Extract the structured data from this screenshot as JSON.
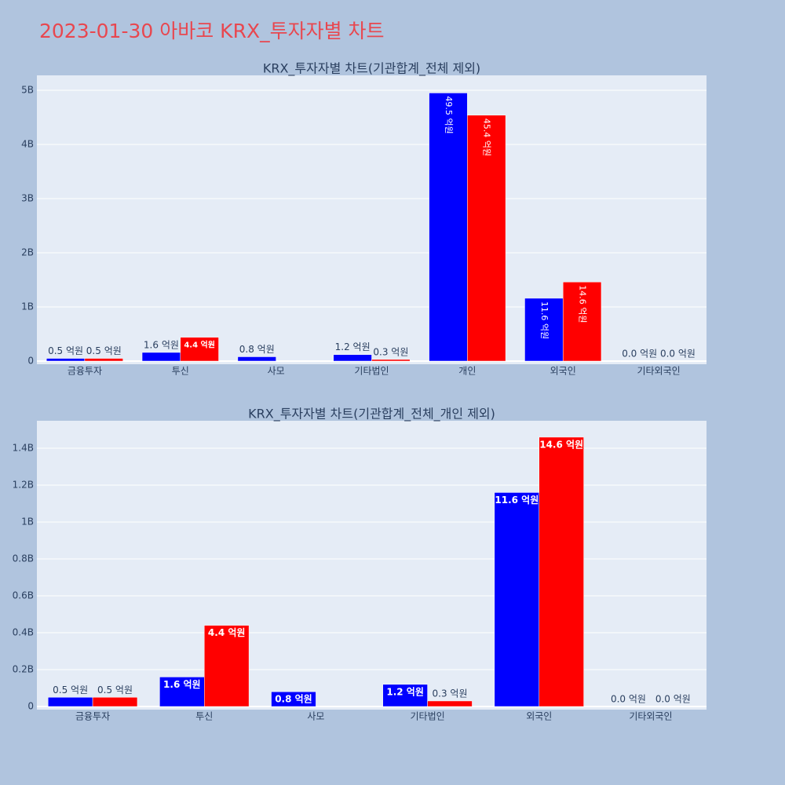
{
  "title": "2023-01-30 아바코 KRX_투자자별 차트",
  "chart_data": [
    {
      "type": "bar",
      "title": "KRX_투자자별 차트(기관합계_전체 제외)",
      "categories": [
        "금융투자",
        "투신",
        "사모",
        "기타법인",
        "개인",
        "외국인",
        "기타외국인"
      ],
      "series": [
        {
          "color": "#0000ff",
          "values": [
            50000000,
            160000000,
            80000000,
            120000000,
            4950000000,
            1160000000,
            0
          ],
          "value_labels": [
            "0.5 억원",
            "1.6 억원",
            "0.8 억원",
            "1.2 억원",
            "49.5 억원",
            "11.6 억원",
            "0.0 억원"
          ]
        },
        {
          "color": "#ff0000",
          "values": [
            50000000,
            440000000,
            null,
            30000000,
            4540000000,
            1460000000,
            0
          ],
          "value_labels": [
            "0.5 억원",
            "4.4 억원",
            null,
            "0.3 억원",
            "45.4 억원",
            "14.6 억원",
            "0.0 억원"
          ]
        }
      ],
      "ylim": [
        -58000000,
        5275000000
      ],
      "yticks": [
        0,
        {
          "value": 1000000000,
          "label": "1B"
        },
        {
          "value": 2000000000,
          "label": "2B"
        },
        {
          "value": 3000000000,
          "label": "3B"
        },
        {
          "value": 4000000000,
          "label": "4B"
        },
        {
          "value": 5000000000,
          "label": "5B"
        }
      ],
      "grid": true
    },
    {
      "type": "bar",
      "title": "KRX_투자자별 차트(기관합계_전체_개인 제외)",
      "categories": [
        "금융투자",
        "투신",
        "사모",
        "기타법인",
        "외국인",
        "기타외국인"
      ],
      "series": [
        {
          "color": "#0000ff",
          "values": [
            50000000,
            160000000,
            80000000,
            120000000,
            1160000000,
            0
          ],
          "value_labels": [
            "0.5 억원",
            "1.6 억원",
            "0.8 억원",
            "1.2 억원",
            "11.6 억원",
            "0.0 억원"
          ]
        },
        {
          "color": "#ff0000",
          "values": [
            50000000,
            440000000,
            null,
            30000000,
            1460000000,
            0
          ],
          "value_labels": [
            "0.5 억원",
            "4.4 억원",
            null,
            "0.3 억원",
            "14.6 억원",
            "0.0 억원"
          ]
        }
      ],
      "ylim": [
        -17000000,
        1549000000
      ],
      "yticks": [
        0,
        {
          "value": 200000000,
          "label": "0.2B"
        },
        {
          "value": 400000000,
          "label": "0.4B"
        },
        {
          "value": 600000000,
          "label": "0.6B"
        },
        {
          "value": 800000000,
          "label": "0.8B"
        },
        {
          "value": 1000000000,
          "label": "1B"
        },
        {
          "value": 1200000000,
          "label": "1.2B"
        },
        {
          "value": 1400000000,
          "label": "1.4B"
        }
      ],
      "grid": true
    }
  ]
}
